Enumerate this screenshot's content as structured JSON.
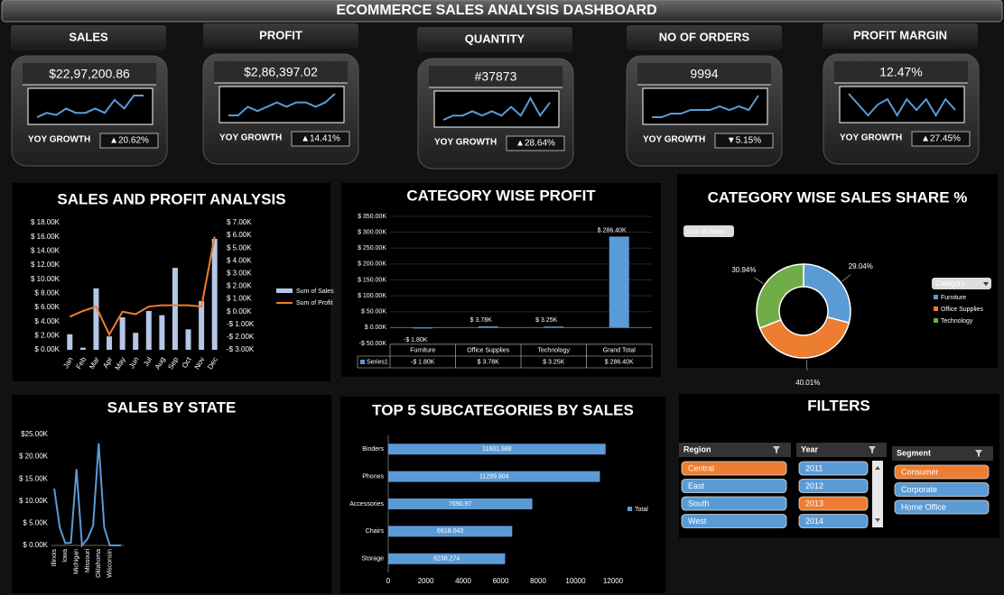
{
  "title": "ECOMMERCE SALES ANALYSIS DASHBOARD",
  "kpis": [
    {
      "label": "SALES",
      "value": "$22,97,200.86",
      "growth_label": "YOY GROWTH",
      "growth": "▲20.62%",
      "growth_color": "#22c322",
      "trend": [
        4,
        5,
        4.5,
        6,
        5,
        5,
        6,
        5,
        8,
        6,
        9,
        9
      ]
    },
    {
      "label": "PROFIT",
      "value": "$2,86,397.02",
      "growth_label": "YOY GROWTH",
      "growth": "▲14.41%",
      "growth_color": "#22c322",
      "trend": [
        3,
        3,
        5,
        4,
        5,
        6,
        5,
        6,
        6,
        5,
        6,
        8
      ]
    },
    {
      "label": "QUANTITY",
      "value": "#37873",
      "growth_label": "YOY GROWTH",
      "growth": "▲28.64%",
      "growth_color": "#22c322",
      "trend": [
        2,
        3,
        3,
        4,
        3,
        4,
        3,
        5,
        3,
        7,
        3,
        6
      ]
    },
    {
      "label": "NO OF ORDERS",
      "value": "9994",
      "growth_label": "YOY GROWTH",
      "growth": "▼5.15%",
      "growth_color": "#ff2020",
      "trend": [
        3,
        3,
        4,
        4,
        5,
        5,
        5,
        6,
        5,
        6,
        5,
        9
      ]
    },
    {
      "label": "PROFIT MARGIN",
      "value": "12.47%",
      "growth_label": "YOY GROWTH",
      "growth": "▲27.45%",
      "growth_color": "#22c322",
      "trend": [
        7,
        5,
        3,
        5,
        6,
        3,
        6,
        4,
        6,
        3,
        6,
        4
      ]
    }
  ],
  "chart_data": [
    {
      "type": "combo",
      "title": "SALES AND PROFIT ANALYSIS",
      "categories": [
        "Jan",
        "Feb",
        "Mar",
        "Apr",
        "May",
        "Jun",
        "Jul",
        "Aug",
        "Sep",
        "Oct",
        "Nov",
        "Dec"
      ],
      "series": [
        {
          "name": "Sum of Sales",
          "type": "bar",
          "color": "#b4c7e7",
          "values": [
            2200,
            300,
            8700,
            1900,
            4600,
            2400,
            5500,
            4900,
            11600,
            2900,
            6900,
            15700
          ]
        },
        {
          "name": "Sum of Profit",
          "type": "line",
          "axis": "y2",
          "color": "#ed7d31",
          "values": [
            -400,
            50,
            400,
            -1800,
            0,
            -200,
            400,
            500,
            500,
            500,
            400,
            5900
          ]
        }
      ],
      "ylim": [
        0,
        18000
      ],
      "yticks": [
        {
          "value": 0,
          "label": "$ 0.00K"
        },
        {
          "value": 2000,
          "label": "$ 2.00K"
        },
        {
          "value": 4000,
          "label": "$ 4.00K"
        },
        {
          "value": 6000,
          "label": "$ 6.00K"
        },
        {
          "value": 8000,
          "label": "$ 8.00K"
        },
        {
          "value": 10000,
          "label": "$ 10.00K"
        },
        {
          "value": 12000,
          "label": "$ 12.00K"
        },
        {
          "value": 14000,
          "label": "$ 14.00K"
        },
        {
          "value": 16000,
          "label": "$ 16.00K"
        },
        {
          "value": 18000,
          "label": "$ 18.00K"
        }
      ],
      "y2lim": [
        -3000,
        7000
      ],
      "y2ticks": [
        {
          "value": -3000,
          "label": "-$ 3.00K"
        },
        {
          "value": -2000,
          "label": "-$ 2.00K"
        },
        {
          "value": -1000,
          "label": "-$ 1.00K"
        },
        {
          "value": 0,
          "label": "$ 0.00K"
        },
        {
          "value": 1000,
          "label": "$ 1.00K"
        },
        {
          "value": 2000,
          "label": "$ 2.00K"
        },
        {
          "value": 3000,
          "label": "$ 3.00K"
        },
        {
          "value": 4000,
          "label": "$ 4.00K"
        },
        {
          "value": 5000,
          "label": "$ 5.00K"
        },
        {
          "value": 6000,
          "label": "$ 6.00K"
        },
        {
          "value": 7000,
          "label": "$ 7.00K"
        }
      ]
    },
    {
      "type": "bar",
      "title": "CATEGORY WISE PROFIT",
      "series_name": "Series1",
      "color": "#5b9bd5",
      "categories": [
        "Furniture",
        "Office Supplies",
        "Technology",
        "Grand Total"
      ],
      "values": [
        -1800,
        3780,
        3250,
        286400
      ],
      "value_labels": [
        "-$ 1.80K",
        "$ 3.78K",
        "$ 3.25K",
        "$ 286.40K"
      ],
      "ylim": [
        -50000,
        350000
      ],
      "yticks": [
        {
          "value": -50000,
          "label": "-$ 50.00K"
        },
        {
          "value": 0,
          "label": "$ 0.00K"
        },
        {
          "value": 50000,
          "label": "$ 50.00K"
        },
        {
          "value": 100000,
          "label": "$ 100.00K"
        },
        {
          "value": 150000,
          "label": "$ 150.00K"
        },
        {
          "value": 200000,
          "label": "$ 200.00K"
        },
        {
          "value": 250000,
          "label": "$ 250.00K"
        },
        {
          "value": 300000,
          "label": "$ 300.00K"
        },
        {
          "value": 350000,
          "label": "$ 350.00K"
        }
      ],
      "grid": true
    },
    {
      "type": "donut",
      "title": "CATEGORY WISE SALES SHARE %",
      "field_button": "Sum of Sales",
      "legend_title": "Category",
      "categories": [
        "Furniture",
        "Office Supplies",
        "Technology"
      ],
      "values": [
        29.04,
        40.01,
        30.94
      ],
      "value_labels": [
        "29.04%",
        "40.01%",
        "30.94%"
      ],
      "colors": [
        "#5b9bd5",
        "#ed7d31",
        "#70ad47"
      ]
    },
    {
      "type": "line",
      "title": "SALES BY STATE",
      "color": "#5b9bd5",
      "categories": [
        "Illinois",
        null,
        "Iowa",
        null,
        "Michigan",
        null,
        "Missouri",
        null,
        "Oklahoma",
        null,
        "Wisconsin",
        null,
        null
      ],
      "values": [
        12800,
        4000,
        500,
        600,
        17200,
        0,
        1500,
        4500,
        23000,
        4000,
        0,
        0,
        0
      ],
      "ylim": [
        0,
        25000
      ],
      "yticks": [
        {
          "value": 0,
          "label": "$ 0.00K"
        },
        {
          "value": 5000,
          "label": "$ 5.00K"
        },
        {
          "value": 10000,
          "label": "$ 10.00K"
        },
        {
          "value": 15000,
          "label": "$ 15.00K"
        },
        {
          "value": 20000,
          "label": "$ 20.00K"
        },
        {
          "value": 25000,
          "label": "$25.00K"
        }
      ]
    },
    {
      "type": "hbar",
      "title": "TOP 5 SUBCATEGORIES BY SALES",
      "series_name": "Total",
      "color": "#5b9bd5",
      "categories": [
        "Binders",
        "Phones",
        "Accessories",
        "Chairs",
        "Storage"
      ],
      "values": [
        11601.988,
        11299.904,
        7690.97,
        6618.043,
        6238.274
      ],
      "xlim": [
        0,
        12000
      ],
      "xticks": [
        0,
        2000,
        4000,
        6000,
        8000,
        10000,
        12000
      ]
    }
  ],
  "filters": {
    "title": "FILTERS",
    "colors": {
      "selected": "#ed7d31",
      "normal": "#5b9bd5"
    },
    "slicers": [
      {
        "title": "Region",
        "items": [
          {
            "label": "Central",
            "selected": true
          },
          {
            "label": "East",
            "selected": false
          },
          {
            "label": "South",
            "selected": false
          },
          {
            "label": "West",
            "selected": false
          }
        ]
      },
      {
        "title": "Year",
        "items": [
          {
            "label": "2011",
            "selected": false
          },
          {
            "label": "2012",
            "selected": false
          },
          {
            "label": "2013",
            "selected": true
          },
          {
            "label": "2014",
            "selected": false
          }
        ]
      },
      {
        "title": "Segment",
        "items": [
          {
            "label": "Consumer",
            "selected": true
          },
          {
            "label": "Corporate",
            "selected": false
          },
          {
            "label": "Home Office",
            "selected": false
          }
        ]
      }
    ]
  }
}
